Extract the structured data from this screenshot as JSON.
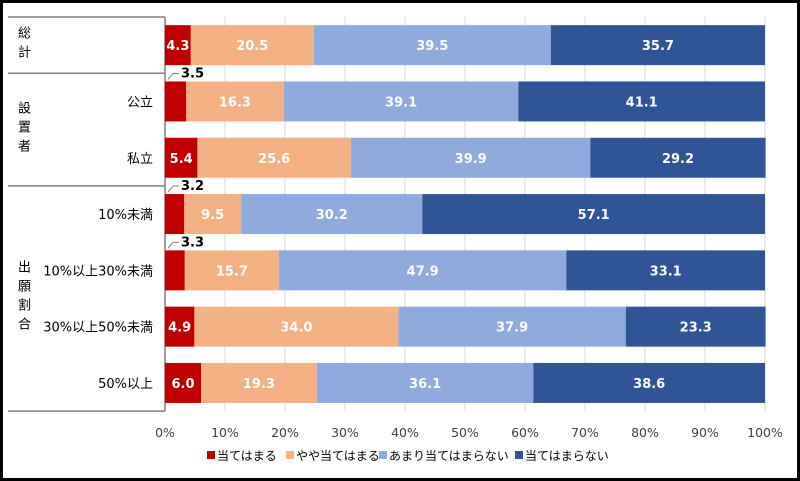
{
  "chart_data": {
    "type": "bar",
    "orientation": "horizontal",
    "stacked": true,
    "percent": true,
    "groups": [
      {
        "label": "総計",
        "rows": [
          0
        ]
      },
      {
        "label": "設置者",
        "rows": [
          1,
          2
        ]
      },
      {
        "label": "出願割合",
        "rows": [
          3,
          4,
          5,
          6
        ]
      }
    ],
    "categories": [
      "",
      "公立",
      "私立",
      "10%未満",
      "10%以上30%未満",
      "30%以上50%未満",
      "50%以上"
    ],
    "series": [
      {
        "name": "当てはまる",
        "color": "#C00000",
        "values": [
          4.3,
          3.5,
          5.4,
          3.2,
          3.3,
          4.9,
          6.0
        ]
      },
      {
        "name": "やや当てはまる",
        "color": "#F4B183",
        "values": [
          20.5,
          16.3,
          25.6,
          9.5,
          15.7,
          34.0,
          19.3
        ]
      },
      {
        "name": "あまり当てはまらない",
        "color": "#8FAADC",
        "values": [
          39.5,
          39.1,
          39.9,
          30.2,
          47.9,
          37.9,
          36.1
        ]
      },
      {
        "name": "当てはまらない",
        "color": "#2F5597",
        "values": [
          35.7,
          41.1,
          29.2,
          57.1,
          33.1,
          23.3,
          38.6
        ]
      }
    ],
    "data_labels": [
      [
        "4.3",
        "20.5",
        "39.5",
        "35.7"
      ],
      [
        "3.5",
        "16.3",
        "39.1",
        "41.1"
      ],
      [
        "5.4",
        "25.6",
        "39.9",
        "29.2"
      ],
      [
        "3.2",
        "9.5",
        "30.2",
        "57.1"
      ],
      [
        "3.3",
        "15.7",
        "47.9",
        "33.1"
      ],
      [
        "4.9",
        "34.0",
        "37.9",
        "23.3"
      ],
      [
        "6.0",
        "19.3",
        "36.1",
        "38.6"
      ]
    ],
    "xlim": [
      0,
      100
    ],
    "xticks": [
      "0%",
      "10%",
      "20%",
      "30%",
      "40%",
      "50%",
      "60%",
      "70%",
      "80%",
      "90%",
      "100%"
    ],
    "grid": true,
    "legend": "bottom"
  }
}
